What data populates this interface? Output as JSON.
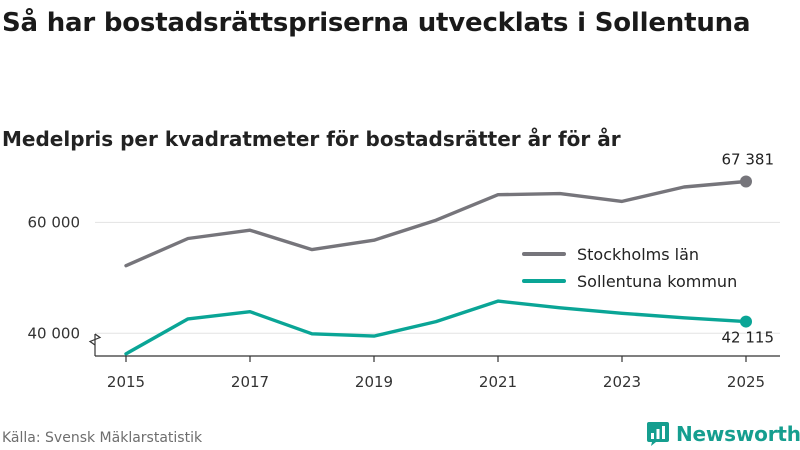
{
  "title": "Så har bostadsrättspriserna utvecklats i Sollentuna",
  "subtitle": "Medelpris per kvadratmeter för bostadsrätter år för år",
  "source": "Källa: Svensk Mäklarstatistik",
  "brand": "Newsworthy",
  "colors": {
    "stockholm": "#76757b",
    "sollentuna": "#0aa596",
    "grid": "#e3e3e3",
    "axis": "#333333",
    "brand": "#159e8f"
  },
  "chart_data": {
    "type": "line",
    "title": "Så har bostadsrättspriserna utvecklats i Sollentuna",
    "subtitle": "Medelpris per kvadratmeter för bostadsrätter år för år",
    "xlabel": "",
    "ylabel": "",
    "x": [
      2015,
      2016,
      2017,
      2018,
      2019,
      2020,
      2021,
      2022,
      2023,
      2024,
      2025
    ],
    "xticks": [
      "2015",
      "2017",
      "2019",
      "2021",
      "2023",
      "2025"
    ],
    "yticks": [
      "40 000",
      "60 000"
    ],
    "ytick_values": [
      40000,
      60000
    ],
    "ylim": [
      35000,
      70000
    ],
    "axis_break": true,
    "grid": true,
    "legend_position": "right",
    "series": [
      {
        "name": "Stockholms län",
        "color": "#76757b",
        "values": [
          52200,
          57100,
          58600,
          55100,
          56800,
          60400,
          65000,
          65200,
          63800,
          66400,
          67381
        ],
        "end_label": "67 381"
      },
      {
        "name": "Sollentuna kommun",
        "color": "#0aa596",
        "values": [
          36300,
          42600,
          43900,
          39900,
          39500,
          42100,
          45800,
          44600,
          43600,
          42800,
          42115
        ],
        "end_label": "42 115"
      }
    ]
  }
}
